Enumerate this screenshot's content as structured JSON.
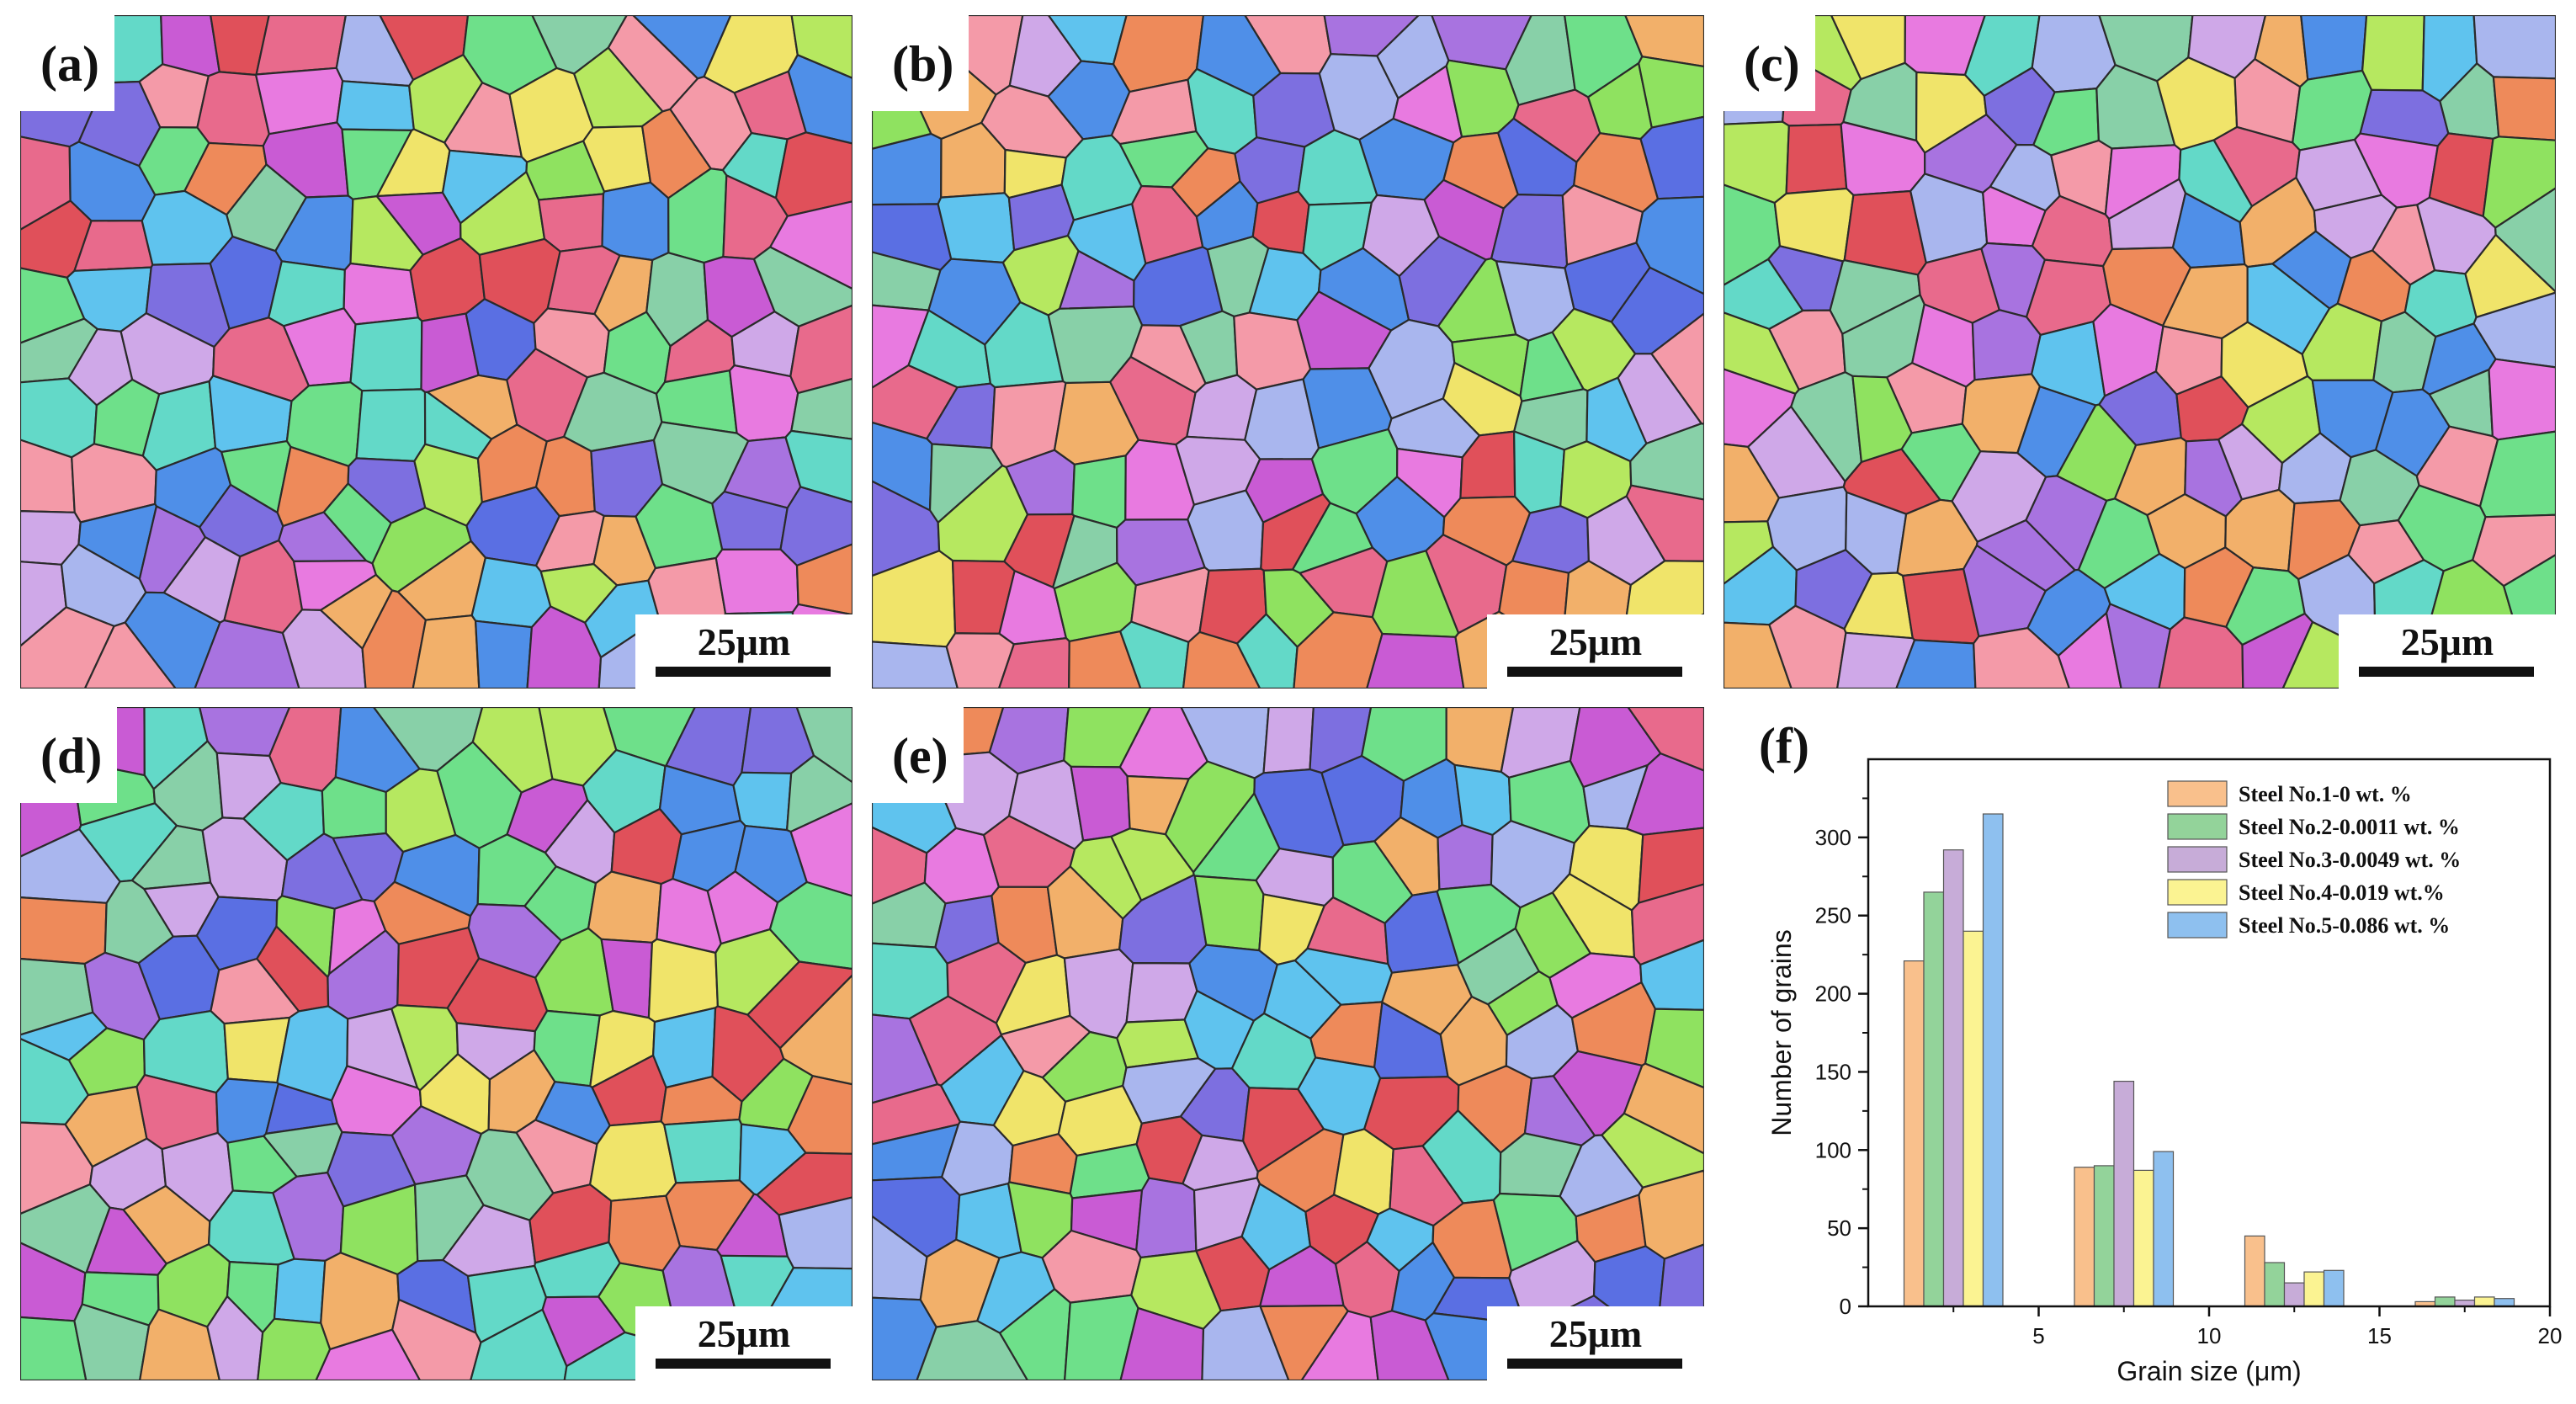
{
  "figure": {
    "panels": [
      {
        "id": "a",
        "label": "(a)",
        "scale_bar": "25μm"
      },
      {
        "id": "b",
        "label": "(b)",
        "scale_bar": "25μm"
      },
      {
        "id": "c",
        "label": "(c)",
        "scale_bar": "25μm"
      },
      {
        "id": "d",
        "label": "(d)",
        "scale_bar": "25μm"
      },
      {
        "id": "e",
        "label": "(e)",
        "scale_bar": "25μm"
      }
    ],
    "chart_label": "(f)",
    "grain_palette": [
      "#e0505a",
      "#e86a8c",
      "#c95bd4",
      "#a873e0",
      "#7d6fe0",
      "#5a6fe3",
      "#4f8fe8",
      "#5fc3ee",
      "#63d9c8",
      "#6ee08a",
      "#8fe260",
      "#b6e860",
      "#f0e46a",
      "#f2b06a",
      "#ee8a5a",
      "#e87ae0",
      "#a9b6ee",
      "#cfa8e8",
      "#88d0a8",
      "#f49aa8"
    ]
  },
  "chart_data": {
    "type": "bar",
    "xlabel": "Grain size (μm)",
    "ylabel": "Number of grains",
    "xlim": [
      0,
      20
    ],
    "ylim": [
      0,
      350
    ],
    "xticks": [
      5,
      10,
      15,
      20
    ],
    "yticks": [
      0,
      50,
      100,
      150,
      200,
      250,
      300
    ],
    "x": [
      2.5,
      7.5,
      12.5,
      17.5
    ],
    "legend_position": "top-right",
    "series": [
      {
        "name": "Steel No.1-0 wt. %",
        "color": "#f9c08c",
        "values": [
          221,
          89,
          45,
          3
        ]
      },
      {
        "name": "Steel No.2-0.0011 wt. %",
        "color": "#93d39a",
        "values": [
          265,
          90,
          28,
          6
        ]
      },
      {
        "name": "Steel No.3-0.0049 wt. %",
        "color": "#c7acd8",
        "values": [
          292,
          144,
          15,
          4
        ]
      },
      {
        "name": "Steel No.4-0.019 wt.%",
        "color": "#fbf392",
        "values": [
          240,
          87,
          22,
          6
        ]
      },
      {
        "name": "Steel No.5-0.086 wt. %",
        "color": "#8ec0ef",
        "values": [
          315,
          99,
          23,
          5
        ]
      }
    ]
  }
}
